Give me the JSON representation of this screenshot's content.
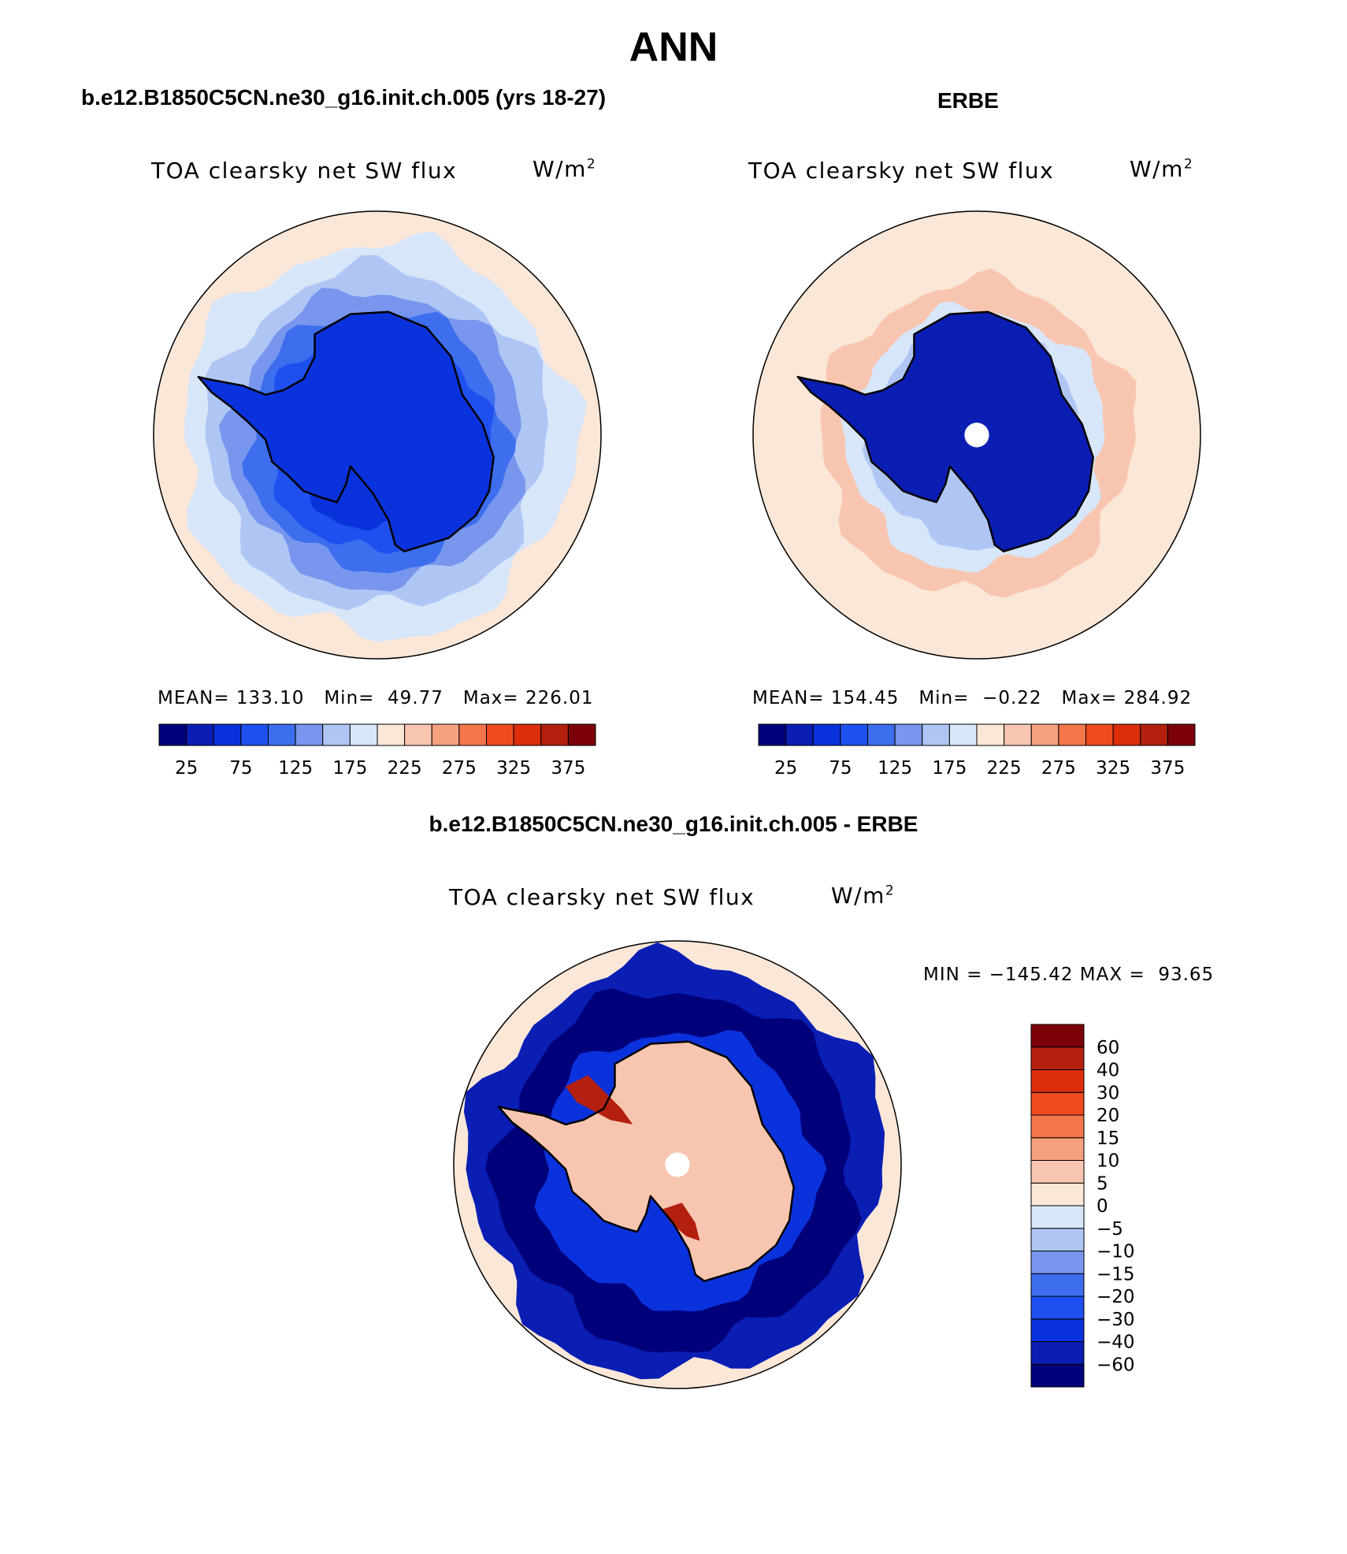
{
  "page": {
    "title": "ANN",
    "top_left_title": "b.e12.B1850C5CN.ne30_g16.init.ch.005 (yrs 18-27)",
    "top_right_title": "ERBE",
    "bottom_title": "b.e12.B1850C5CN.ne30_g16.init.ch.005 - ERBE"
  },
  "chart_data": [
    {
      "type": "heatmap",
      "projection": "south-polar-stereographic",
      "title": "b.e12.B1850C5CN.ne30_g16.init.ch.005 (yrs 18-27)",
      "variable": "TOA clearsky net SW flux",
      "units_base": "W/m",
      "units_exp": "2",
      "stats": {
        "mean_label": "MEAN=",
        "mean": "133.10",
        "min_label": "Min=",
        "min": "49.77",
        "max_label": "Max=",
        "max": "226.01"
      },
      "colorbar": {
        "orientation": "horizontal",
        "levels": [
          25,
          50,
          75,
          100,
          125,
          150,
          175,
          200,
          225,
          250,
          275,
          300,
          325,
          350,
          375
        ],
        "tick_labels": [
          "25",
          "75",
          "125",
          "175",
          "225",
          "275",
          "325",
          "375"
        ],
        "colors": [
          "#00007a",
          "#0a1eb4",
          "#0a32dc",
          "#1e50f0",
          "#3c6eee",
          "#7896ee",
          "#afc6f5",
          "#d8e6fa",
          "#fbe7d7",
          "#f8c6b0",
          "#f5a07f",
          "#f4764b",
          "#ee4a1e",
          "#dc2e0a",
          "#b4200e",
          "#7c000a"
        ]
      },
      "field_rings": [
        {
          "r": 1.0,
          "value": 215
        },
        {
          "r": 0.88,
          "value": 185
        },
        {
          "r": 0.76,
          "value": 165
        },
        {
          "r": 0.66,
          "value": 140
        },
        {
          "r": 0.58,
          "value": 115
        },
        {
          "r": 0.5,
          "value": 95
        },
        {
          "r": 0.4,
          "value": 70
        }
      ],
      "continent_value": 60
    },
    {
      "type": "heatmap",
      "projection": "south-polar-stereographic",
      "title": "ERBE",
      "variable": "TOA clearsky net SW flux",
      "units_base": "W/m",
      "units_exp": "2",
      "stats": {
        "mean_label": "MEAN=",
        "mean": "154.45",
        "min_label": "Min=",
        "min": "−0.22",
        "max_label": "Max=",
        "max": "284.92"
      },
      "colorbar": {
        "orientation": "horizontal",
        "levels": [
          25,
          50,
          75,
          100,
          125,
          150,
          175,
          200,
          225,
          250,
          275,
          300,
          325,
          350,
          375
        ],
        "tick_labels": [
          "25",
          "75",
          "125",
          "175",
          "225",
          "275",
          "325",
          "375"
        ],
        "colors": [
          "#00007a",
          "#0a1eb4",
          "#0a32dc",
          "#1e50f0",
          "#3c6eee",
          "#7896ee",
          "#afc6f5",
          "#d8e6fa",
          "#fbe7d7",
          "#f8c6b0",
          "#f5a07f",
          "#f4764b",
          "#ee4a1e",
          "#dc2e0a",
          "#b4200e",
          "#7c000a"
        ]
      },
      "field_rings": [
        {
          "r": 1.0,
          "value": 215
        },
        {
          "r": 0.7,
          "value": 240
        },
        {
          "r": 0.58,
          "value": 190
        },
        {
          "r": 0.48,
          "value": 150
        }
      ],
      "continent_value": 45,
      "missing_pole": true
    },
    {
      "type": "heatmap",
      "projection": "south-polar-stereographic",
      "title": "b.e12.B1850C5CN.ne30_g16.init.ch.005 - ERBE",
      "variable": "TOA clearsky net SW flux",
      "units_base": "W/m",
      "units_exp": "2",
      "stats": {
        "min_label": "MIN =",
        "min": "−145.42",
        "max_label": "MAX =",
        "max": "93.65"
      },
      "colorbar": {
        "orientation": "vertical",
        "levels": [
          -60,
          -40,
          -30,
          -20,
          -15,
          -10,
          -5,
          0,
          5,
          10,
          15,
          20,
          30,
          40,
          60
        ],
        "tick_labels": [
          "60",
          "40",
          "30",
          "20",
          "15",
          "10",
          "5",
          "0",
          "−5",
          "−10",
          "−15",
          "−20",
          "−30",
          "−40",
          "−60"
        ],
        "colors": [
          "#00007a",
          "#0a1eb4",
          "#0a32dc",
          "#1e50f0",
          "#3c6eee",
          "#7896ee",
          "#afc6f5",
          "#d8e6fa",
          "#fbe7d7",
          "#f8c6b0",
          "#f5a07f",
          "#f4764b",
          "#ee4a1e",
          "#dc2e0a",
          "#b4200e",
          "#7c000a"
        ]
      },
      "field_rings": [
        {
          "r": 1.0,
          "value": 2
        },
        {
          "r": 0.93,
          "value": -45
        },
        {
          "r": 0.8,
          "value": -70
        },
        {
          "r": 0.62,
          "value": -35
        }
      ],
      "continent_value": 6,
      "missing_pole": true
    }
  ]
}
